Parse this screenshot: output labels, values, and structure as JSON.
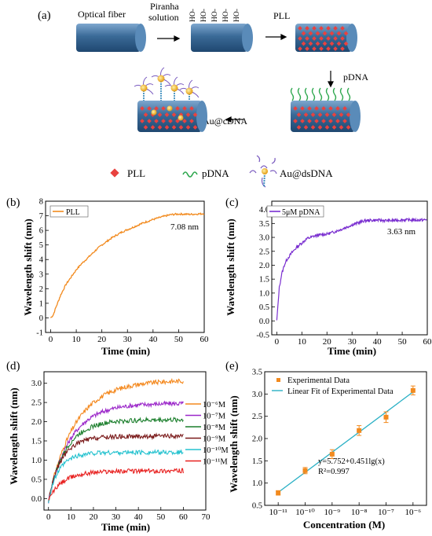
{
  "schematic": {
    "panel_label": "(a)",
    "step1_label": "Optical fiber",
    "step2_arrow_label_line1": "Piranha",
    "step2_arrow_label_line2": "solution",
    "hydroxyl_label": "HO-",
    "step3_arrow_label": "PLL",
    "step4_arrow_label": "pDNA",
    "step5_arrow_label": "Au@cDNA",
    "legend": [
      {
        "label": "PLL",
        "icon": "red-diamond-icon"
      },
      {
        "label": "pDNA",
        "icon": "green-squiggle-icon"
      },
      {
        "label": "Au@dsDNA",
        "icon": "gold-nanoparticle-icon"
      }
    ],
    "colors": {
      "fiber": "#2f5d8a",
      "fiber_light": "#6f9cc8",
      "pll": "#e8423f",
      "pdna": "#2fa84f",
      "gold": "#f2b01e",
      "dna_purple": "#7a5bbf"
    }
  },
  "chart_data": [
    {
      "panel_label": "(b)",
      "type": "line",
      "xlabel": "Time (min)",
      "ylabel": "Wavelength shift (nm)",
      "xlim": [
        -2,
        60
      ],
      "ylim": [
        -1,
        8
      ],
      "xticks": [
        "0",
        "10",
        "20",
        "30",
        "40",
        "50",
        "60"
      ],
      "yticks": [
        "-1",
        "0",
        "1",
        "2",
        "3",
        "4",
        "5",
        "6",
        "7",
        "8"
      ],
      "legend": "top-left",
      "annotation": "7.08 nm",
      "series": [
        {
          "name": "PLL",
          "color": "#f28a1e",
          "x": [
            0,
            1,
            2,
            4,
            6,
            8,
            10,
            12,
            15,
            18,
            20,
            24,
            28,
            32,
            36,
            40,
            44,
            47,
            50,
            55,
            60
          ],
          "y": [
            0,
            0.2,
            0.7,
            1.6,
            2.3,
            2.8,
            3.3,
            3.7,
            4.2,
            4.7,
            5.0,
            5.5,
            5.9,
            6.2,
            6.5,
            6.75,
            6.95,
            7.08,
            7.12,
            7.1,
            7.15
          ]
        }
      ]
    },
    {
      "panel_label": "(c)",
      "type": "line",
      "xlabel": "Time (min)",
      "ylabel": "Wavelength shift (nm)",
      "xlim": [
        -2,
        60
      ],
      "ylim": [
        -0.5,
        4.3
      ],
      "xticks": [
        "0",
        "10",
        "20",
        "30",
        "40",
        "50",
        "60"
      ],
      "yticks": [
        "-0.5",
        "0.0",
        "0.5",
        "1.0",
        "1.5",
        "2.0",
        "2.5",
        "3.0",
        "3.5",
        "4.0"
      ],
      "legend": "top-left",
      "annotation": "3.63 nm",
      "series": [
        {
          "name": "5μM pDNA",
          "color": "#7a2fd0",
          "x": [
            0,
            0.5,
            1,
            2,
            3,
            4,
            6,
            8,
            10,
            12,
            15,
            18,
            20,
            23,
            26,
            30,
            35,
            40,
            45,
            50,
            55,
            60
          ],
          "y": [
            0,
            0.6,
            1.2,
            1.7,
            2.0,
            2.2,
            2.45,
            2.65,
            2.8,
            2.95,
            3.05,
            3.1,
            3.12,
            3.2,
            3.3,
            3.45,
            3.6,
            3.62,
            3.6,
            3.63,
            3.62,
            3.63
          ]
        }
      ]
    },
    {
      "panel_label": "(d)",
      "type": "line",
      "xlabel": "Time (min)",
      "ylabel": "Wavelength shift (nm)",
      "xlim": [
        -2,
        70
      ],
      "ylim": [
        -0.3,
        3.3
      ],
      "xticks": [
        "0",
        "10",
        "20",
        "30",
        "40",
        "50",
        "60",
        "70"
      ],
      "yticks": [
        "0.0",
        "0.5",
        "1.0",
        "1.5",
        "2.0",
        "2.5",
        "3.0"
      ],
      "legend": "right",
      "series": [
        {
          "name": "10⁻⁶M",
          "color": "#f4891f",
          "plateau": 3.08,
          "tau": 12
        },
        {
          "name": "10⁻⁷M",
          "color": "#9b27c9",
          "plateau": 2.48,
          "tau": 10
        },
        {
          "name": "10⁻⁸M",
          "color": "#1a7e2b",
          "plateau": 2.05,
          "tau": 8
        },
        {
          "name": "10⁻⁹M",
          "color": "#7a1a1a",
          "plateau": 1.62,
          "tau": 6
        },
        {
          "name": "10⁻¹⁰M",
          "color": "#25c2cf",
          "plateau": 1.2,
          "tau": 5
        },
        {
          "name": "10⁻¹¹M",
          "color": "#e8201f",
          "plateau": 0.72,
          "tau": 7
        }
      ]
    },
    {
      "panel_label": "(e)",
      "type": "scatter",
      "xlabel": "Concentration (M)",
      "ylabel": "Wavelength shift (nm)",
      "xscale": "log",
      "xlim": [
        -11.5,
        -5.5
      ],
      "ylim": [
        0.5,
        3.5
      ],
      "xticks": [
        "10⁻¹¹",
        "10⁻¹⁰",
        "10⁻⁹",
        "10⁻⁸",
        "10⁻⁷",
        "10⁻⁶"
      ],
      "yticks": [
        "0.5",
        "1.0",
        "1.5",
        "2.0",
        "2.5",
        "3.0",
        "3.5"
      ],
      "legend": "top-left",
      "equation": "y=5.752+0.451lg(x)",
      "r_squared": "R²=0.997",
      "series": [
        {
          "name": "Experimental Data",
          "color": "#f28a1e",
          "log_x": [
            -11,
            -10,
            -9,
            -8,
            -7,
            -6
          ],
          "y": [
            0.78,
            1.28,
            1.65,
            2.18,
            2.48,
            3.08
          ],
          "err": [
            0.05,
            0.07,
            0.1,
            0.11,
            0.12,
            0.1
          ]
        },
        {
          "name": "Linear Fit of Experimental Data",
          "color": "#2ab0c5",
          "intercept": 5.752,
          "slope": 0.451
        }
      ]
    }
  ]
}
